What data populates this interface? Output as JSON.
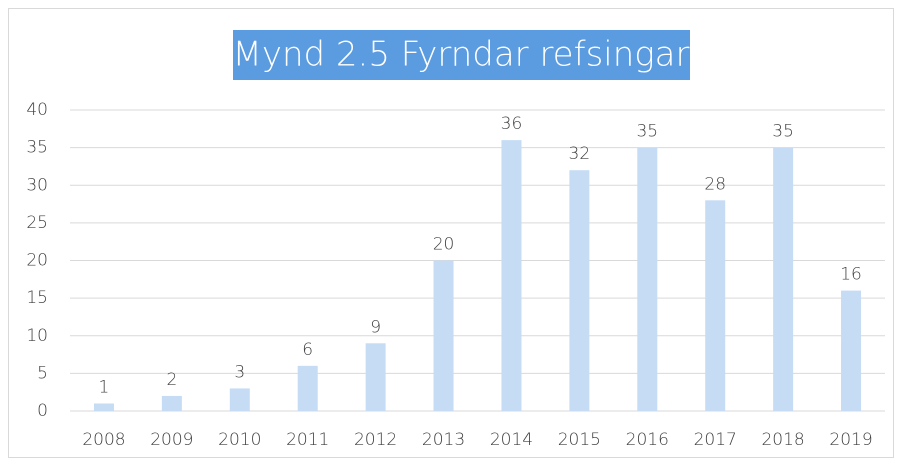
{
  "chart_data": {
    "type": "bar",
    "title": "Mynd 2.5 Fyrndar refsingar",
    "categories": [
      "2008",
      "2009",
      "2010",
      "2011",
      "2012",
      "2013",
      "2014",
      "2015",
      "2016",
      "2017",
      "2018",
      "2019"
    ],
    "values": [
      1,
      2,
      3,
      6,
      9,
      20,
      36,
      32,
      35,
      28,
      35,
      16
    ],
    "color": "#c6dcf5",
    "ylim": [
      0,
      40
    ],
    "yticks": [
      0,
      5,
      10,
      15,
      20,
      25,
      30,
      35,
      40
    ],
    "grid": true
  }
}
